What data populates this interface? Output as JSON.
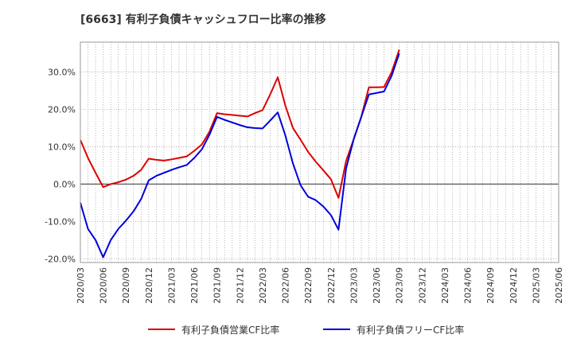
{
  "chart_data": {
    "type": "line",
    "title": "[6663]  有利子負債キャッシュフロー比率の推移",
    "xlabel": "",
    "ylabel": "",
    "ylim": [
      -21,
      38
    ],
    "yticks": [
      -20,
      -10,
      0,
      10,
      20,
      30
    ],
    "ytick_labels": [
      "-20.0%",
      "-10.0%",
      "0.0%",
      "10.0%",
      "20.0%",
      "30.0%"
    ],
    "x_tick_labels": [
      "2020/03",
      "2020/06",
      "2020/09",
      "2020/12",
      "2021/03",
      "2021/06",
      "2021/09",
      "2021/12",
      "2022/03",
      "2022/06",
      "2022/09",
      "2022/12",
      "2023/03",
      "2023/06",
      "2023/09",
      "2023/12",
      "2024/03",
      "2024/06",
      "2024/09",
      "2024/12",
      "2025/03",
      "2025/06"
    ],
    "grid": true,
    "legend_position": "bottom",
    "series": [
      {
        "name": "有利子負債営業CF比率",
        "color": "#dd0000",
        "values": [
          11.8,
          7.0,
          3.0,
          -0.8,
          0.0,
          0.5,
          1.2,
          2.2,
          3.8,
          6.8,
          6.5,
          6.3,
          6.6,
          7.0,
          7.4,
          8.9,
          10.6,
          14.0,
          19.0,
          18.7,
          18.5,
          18.3,
          18.1,
          19.0,
          19.8,
          24.0,
          28.6,
          21.0,
          15.0,
          11.9,
          8.6,
          6.0,
          3.7,
          1.3,
          -3.7,
          6.2,
          12.0,
          18.0,
          25.9,
          25.9,
          26.0,
          30.0,
          36.0,
          null,
          null,
          null,
          null,
          null,
          null,
          null,
          null,
          null,
          null,
          null,
          null,
          null,
          null,
          null,
          null,
          null,
          null,
          null,
          null,
          null
        ]
      },
      {
        "name": "有利子負債フリーCF比率",
        "color": "#0000dd",
        "values": [
          -5.0,
          -12.0,
          -15.0,
          -19.6,
          -15.0,
          -12.0,
          -9.8,
          -7.3,
          -4.0,
          1.0,
          2.2,
          3.0,
          3.8,
          4.5,
          5.1,
          7.0,
          9.3,
          13.2,
          18.0,
          17.2,
          16.5,
          15.8,
          15.2,
          15.0,
          14.9,
          17.0,
          19.2,
          13.0,
          5.5,
          -0.3,
          -3.4,
          -4.3,
          -6.0,
          -8.3,
          -12.2,
          4.2,
          12.0,
          18.0,
          24.0,
          24.4,
          24.8,
          29.0,
          35.0,
          null,
          null,
          null,
          null,
          null,
          null,
          null,
          null,
          null,
          null,
          null,
          null,
          null,
          null,
          null,
          null,
          null,
          null,
          null,
          null,
          null
        ]
      }
    ]
  }
}
